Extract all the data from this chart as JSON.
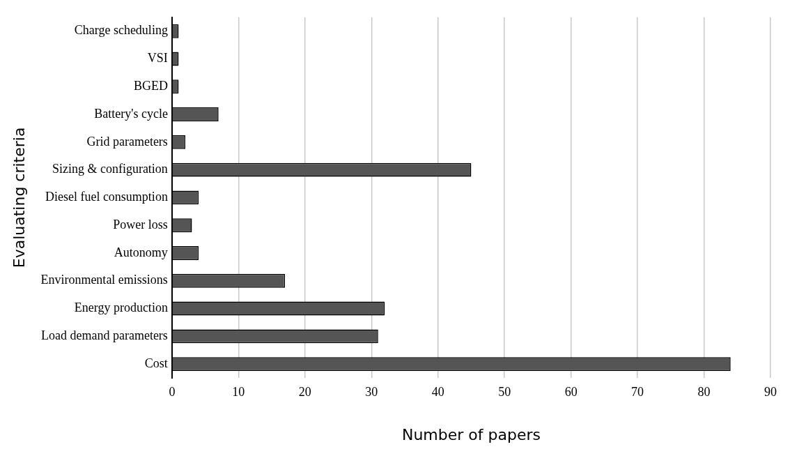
{
  "chart_data": {
    "type": "bar",
    "orientation": "horizontal",
    "xlabel": "Number of papers",
    "ylabel": "Evaluating criteria",
    "categories": [
      "Charge scheduling",
      "VSI",
      "BGED",
      "Battery's cycle",
      "Grid parameters",
      "Sizing & configuration",
      "Diesel fuel consumption",
      "Power loss",
      "Autonomy",
      "Environmental emissions",
      "Energy production",
      "Load demand parameters",
      "Cost"
    ],
    "values": [
      1,
      1,
      1,
      7,
      2,
      45,
      4,
      3,
      4,
      17,
      32,
      31,
      84
    ],
    "color": "#555555",
    "xlim": [
      0,
      90
    ],
    "xticks": [
      0,
      10,
      20,
      30,
      40,
      50,
      60,
      70,
      80,
      90
    ],
    "grid": "x",
    "legend": false
  }
}
